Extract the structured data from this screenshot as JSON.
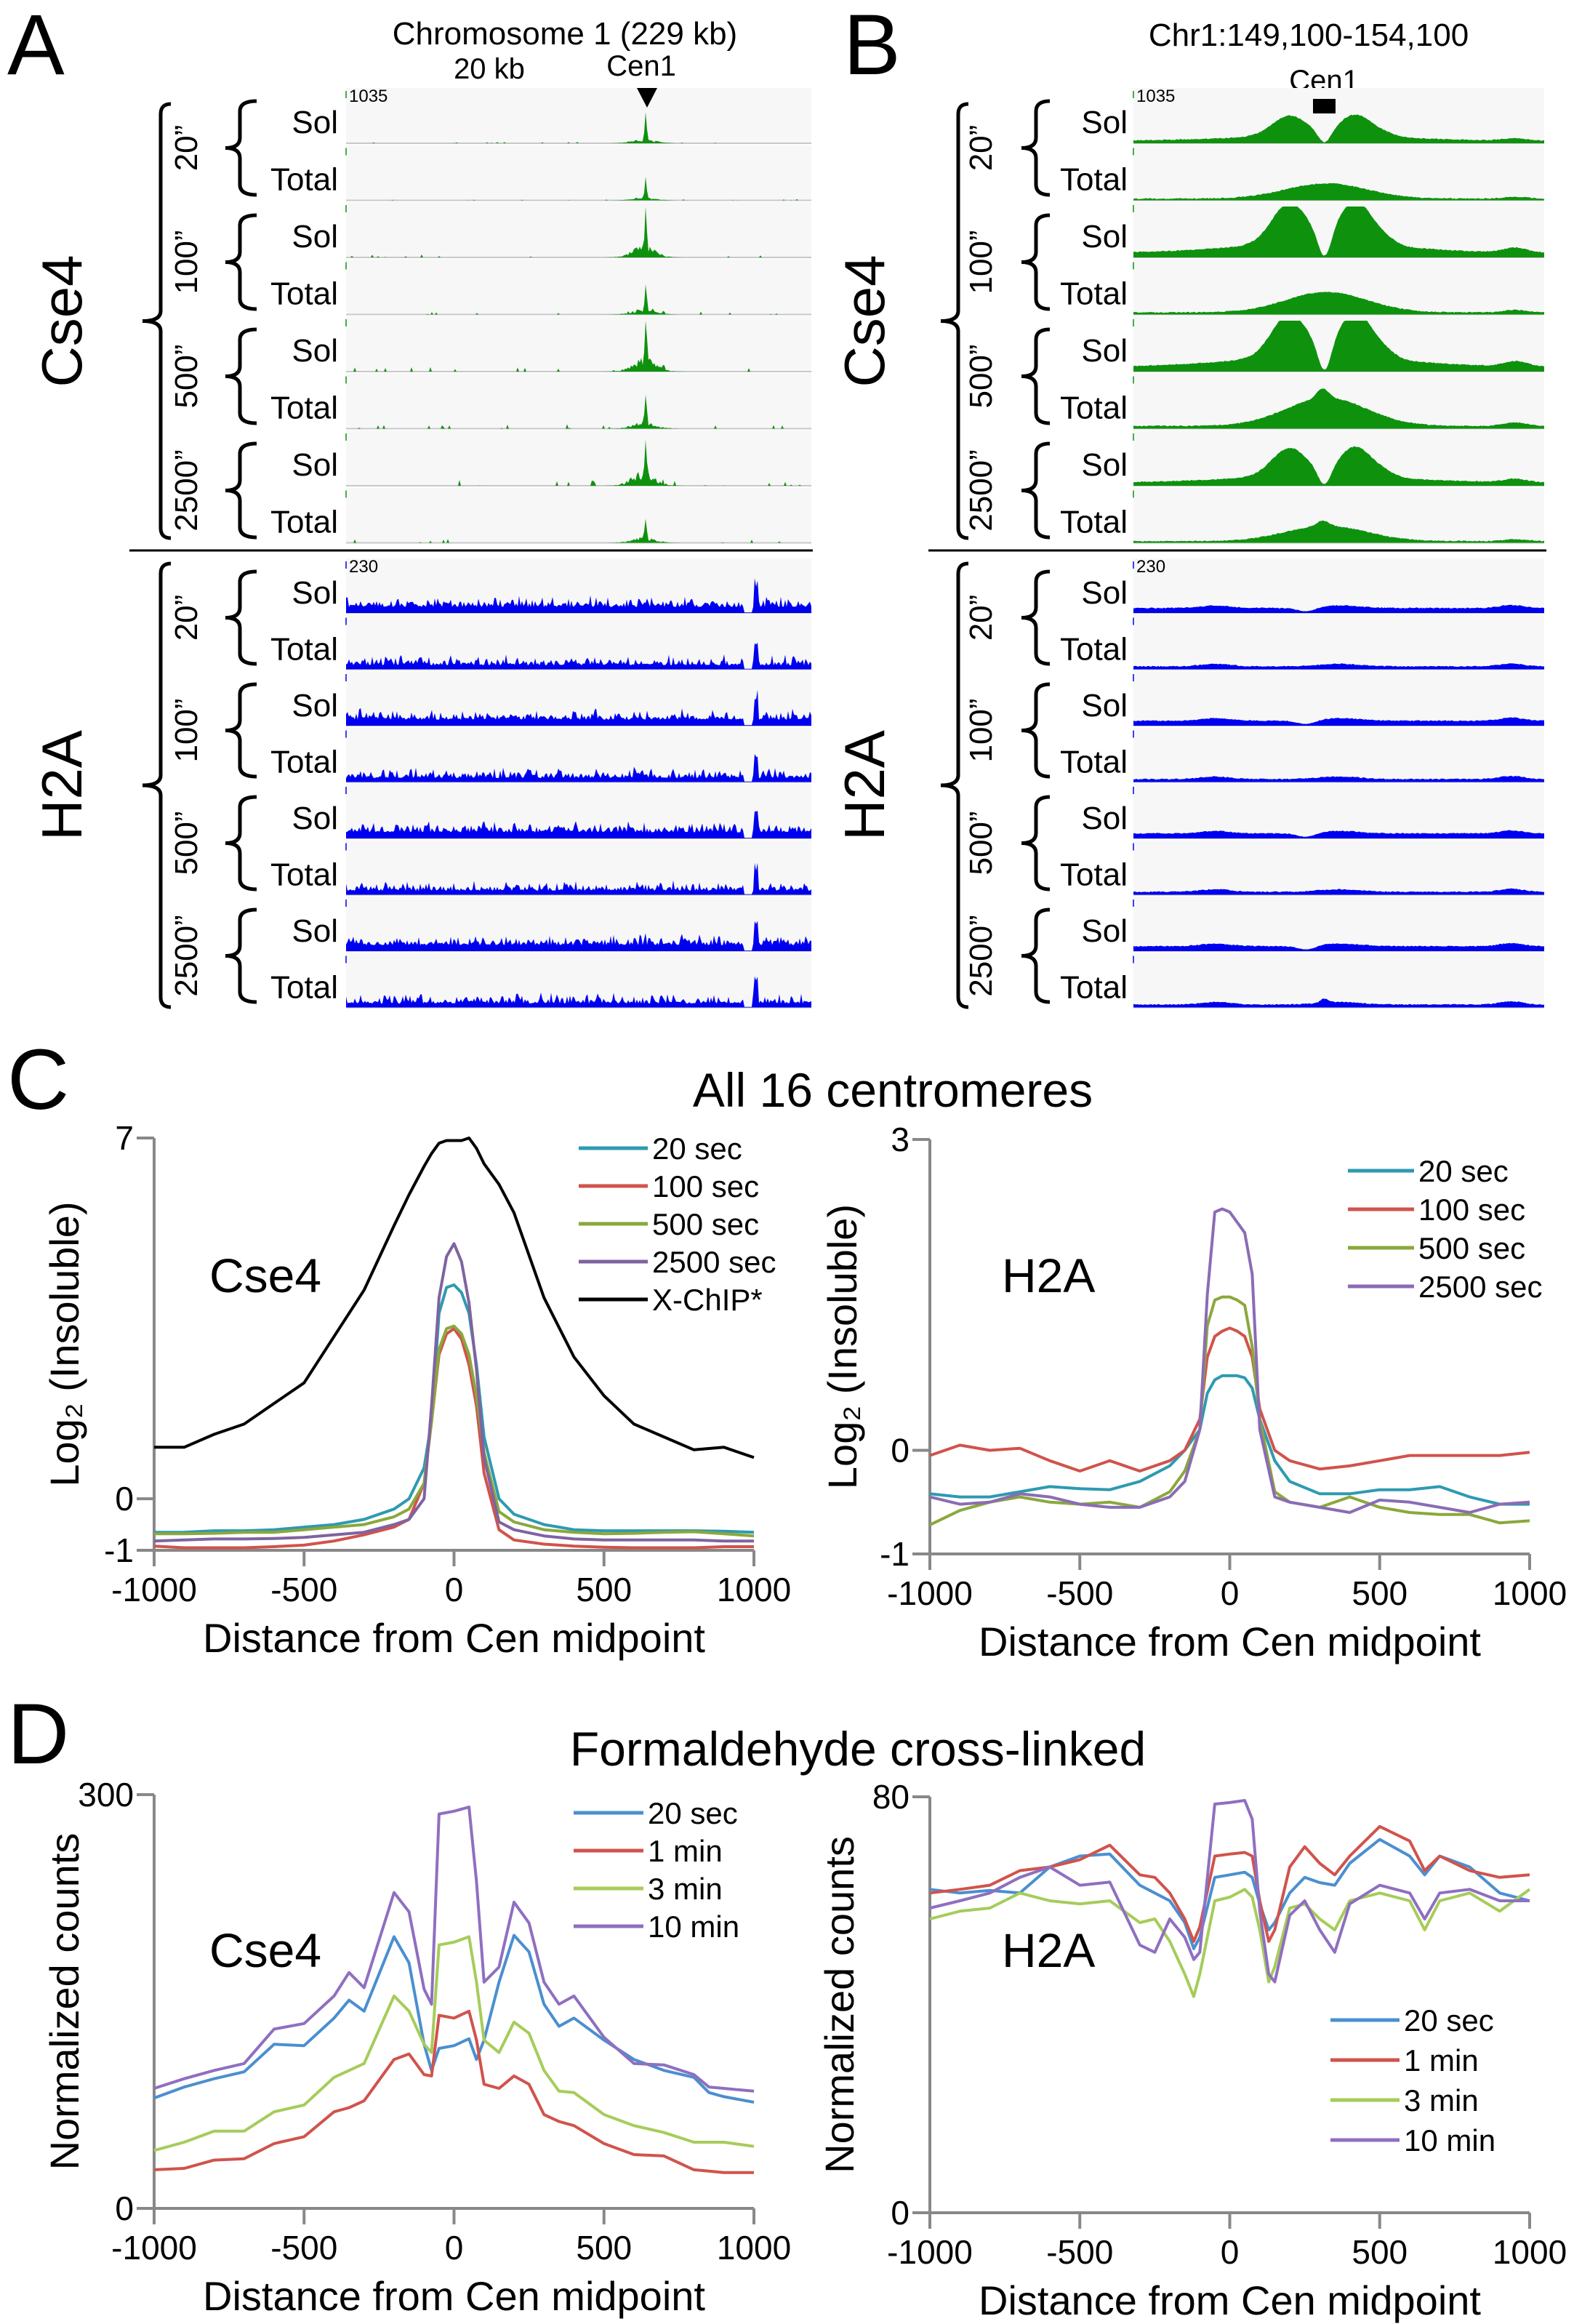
{
  "panels": {
    "A": {
      "letter": "A",
      "title": "Chromosome 1 (229 kb)",
      "scale_bar_label": "20 kb",
      "centromere_label": "Cen1",
      "cse4_scale": "1035",
      "h2a_scale": "230"
    },
    "B": {
      "letter": "B",
      "title": "Chr1:149,100-154,100",
      "centromere_label": "Cen1",
      "cse4_scale": "1035",
      "h2a_scale": "230"
    },
    "C": {
      "letter": "C",
      "title": "All 16 centromeres"
    },
    "D": {
      "letter": "D",
      "title": "Formaldehyde cross-linked"
    }
  },
  "tracks": {
    "groups": [
      {
        "label": "Cse4",
        "color": "#0e920e"
      },
      {
        "label": "H2A",
        "color": "#0000f0"
      }
    ],
    "times": [
      "20”",
      "100”",
      "500”",
      "2500”"
    ],
    "fractions": [
      "Sol",
      "Total"
    ]
  },
  "chart_data": [
    {
      "type": "line",
      "panel": "C",
      "label": "Cse4",
      "xlabel": "Distance from Cen midpoint",
      "ylabel": "Log₂ (Insoluble)",
      "xlim": [
        -1000,
        1000
      ],
      "ylim": [
        -1,
        7
      ],
      "xticks": [
        "-1000",
        "-500",
        "0",
        "500",
        "1000"
      ],
      "yticks": [
        "-1",
        "0",
        "7"
      ],
      "legend": "top-right",
      "grid": false,
      "x": [
        -1000,
        -900,
        -800,
        -700,
        -600,
        -500,
        -400,
        -300,
        -200,
        -150,
        -100,
        -75,
        -50,
        -25,
        0,
        25,
        50,
        75,
        100,
        150,
        200,
        300,
        400,
        500,
        600,
        700,
        800,
        900,
        1000
      ],
      "series": [
        {
          "name": "20 sec",
          "color": "#2e9ab0",
          "values": [
            -0.65,
            -0.65,
            -0.62,
            -0.62,
            -0.6,
            -0.55,
            -0.5,
            -0.4,
            -0.2,
            0.0,
            0.6,
            1.5,
            3.6,
            4.1,
            4.15,
            4.0,
            3.6,
            2.6,
            1.2,
            0.0,
            -0.3,
            -0.5,
            -0.6,
            -0.62,
            -0.62,
            -0.62,
            -0.62,
            -0.63,
            -0.65
          ]
        },
        {
          "name": "100 sec",
          "color": "#d0534c",
          "values": [
            -0.92,
            -0.95,
            -0.95,
            -0.95,
            -0.93,
            -0.9,
            -0.82,
            -0.7,
            -0.55,
            -0.4,
            0.3,
            1.5,
            2.8,
            3.2,
            3.3,
            3.1,
            2.6,
            1.8,
            0.5,
            -0.6,
            -0.8,
            -0.88,
            -0.92,
            -0.94,
            -0.95,
            -0.95,
            -0.95,
            -0.93,
            -0.93
          ]
        },
        {
          "name": "500 sec",
          "color": "#8aa83c",
          "values": [
            -0.68,
            -0.68,
            -0.67,
            -0.65,
            -0.65,
            -0.6,
            -0.55,
            -0.5,
            -0.35,
            -0.2,
            0.3,
            1.5,
            2.9,
            3.3,
            3.35,
            3.2,
            2.8,
            2.0,
            0.9,
            -0.25,
            -0.45,
            -0.6,
            -0.65,
            -0.68,
            -0.67,
            -0.65,
            -0.64,
            -0.68,
            -0.72
          ]
        },
        {
          "name": "2500 sec",
          "color": "#7f63a0",
          "values": [
            -0.82,
            -0.8,
            -0.78,
            -0.78,
            -0.77,
            -0.75,
            -0.7,
            -0.65,
            -0.5,
            -0.4,
            0.0,
            1.8,
            3.9,
            4.7,
            4.95,
            4.6,
            3.8,
            2.5,
            0.8,
            -0.45,
            -0.6,
            -0.72,
            -0.78,
            -0.8,
            -0.8,
            -0.8,
            -0.8,
            -0.82,
            -0.82
          ]
        },
        {
          "name": "X-ChIP*",
          "color": "#000000",
          "values": [
            1.0,
            1.0,
            1.25,
            1.45,
            1.85,
            2.25,
            3.15,
            4.05,
            5.3,
            5.9,
            6.45,
            6.7,
            6.9,
            6.95,
            6.95,
            6.95,
            7.0,
            6.8,
            6.5,
            6.1,
            5.55,
            3.9,
            2.75,
            2.0,
            1.45,
            1.2,
            0.95,
            1.0,
            0.8
          ]
        }
      ]
    },
    {
      "type": "line",
      "panel": "C",
      "label": "H2A",
      "xlabel": "Distance from Cen midpoint",
      "ylabel": "Log₂ (Insoluble)",
      "xlim": [
        -1000,
        1000
      ],
      "ylim": [
        -1,
        3
      ],
      "xticks": [
        "-1000",
        "-500",
        "0",
        "500",
        "1000"
      ],
      "yticks": [
        "-1",
        "0",
        "3"
      ],
      "legend": "top-right",
      "grid": false,
      "x": [
        -1000,
        -900,
        -800,
        -700,
        -600,
        -500,
        -400,
        -300,
        -200,
        -150,
        -100,
        -75,
        -50,
        -25,
        0,
        25,
        50,
        75,
        100,
        150,
        200,
        300,
        400,
        500,
        600,
        700,
        800,
        900,
        1000
      ],
      "series": [
        {
          "name": "20 sec",
          "color": "#2e9ab0",
          "values": [
            -0.42,
            -0.45,
            -0.45,
            -0.4,
            -0.35,
            -0.37,
            -0.38,
            -0.3,
            -0.15,
            0.0,
            0.2,
            0.55,
            0.68,
            0.72,
            0.72,
            0.72,
            0.7,
            0.6,
            0.3,
            -0.1,
            -0.3,
            -0.42,
            -0.42,
            -0.38,
            -0.38,
            -0.35,
            -0.45,
            -0.52,
            -0.52
          ]
        },
        {
          "name": "100 sec",
          "color": "#d0534c",
          "values": [
            -0.05,
            0.05,
            0.0,
            0.02,
            -0.1,
            -0.2,
            -0.1,
            -0.2,
            -0.1,
            0.0,
            0.3,
            0.9,
            1.1,
            1.15,
            1.18,
            1.15,
            1.1,
            0.9,
            0.4,
            0.0,
            -0.1,
            -0.18,
            -0.15,
            -0.1,
            -0.05,
            -0.05,
            -0.05,
            -0.05,
            -0.02
          ]
        },
        {
          "name": "500 sec",
          "color": "#8aa83c",
          "values": [
            -0.72,
            -0.58,
            -0.5,
            -0.45,
            -0.5,
            -0.52,
            -0.5,
            -0.55,
            -0.4,
            -0.2,
            0.2,
            1.2,
            1.45,
            1.48,
            1.48,
            1.45,
            1.4,
            1.0,
            0.3,
            -0.4,
            -0.5,
            -0.55,
            -0.45,
            -0.55,
            -0.6,
            -0.62,
            -0.62,
            -0.7,
            -0.68
          ]
        },
        {
          "name": "2500 sec",
          "color": "#8a6cb4",
          "values": [
            -0.45,
            -0.52,
            -0.5,
            -0.42,
            -0.45,
            -0.52,
            -0.55,
            -0.55,
            -0.45,
            -0.3,
            0.2,
            1.5,
            2.3,
            2.33,
            2.3,
            2.2,
            2.1,
            1.7,
            0.2,
            -0.45,
            -0.5,
            -0.55,
            -0.6,
            -0.48,
            -0.5,
            -0.55,
            -0.6,
            -0.52,
            -0.5
          ]
        }
      ]
    },
    {
      "type": "line",
      "panel": "D",
      "label": "Cse4",
      "xlabel": "Distance from Cen midpoint",
      "ylabel": "Normalized counts",
      "xlim": [
        -1000,
        1000
      ],
      "ylim": [
        0,
        300
      ],
      "xticks": [
        "-1000",
        "-500",
        "0",
        "500",
        "1000"
      ],
      "yticks": [
        "0",
        "300"
      ],
      "legend": "top-right",
      "grid": false,
      "x": [
        -1000,
        -900,
        -800,
        -700,
        -600,
        -500,
        -400,
        -350,
        -300,
        -200,
        -150,
        -100,
        -75,
        -50,
        0,
        50,
        75,
        100,
        150,
        200,
        250,
        300,
        350,
        400,
        500,
        600,
        700,
        800,
        850,
        900,
        1000
      ],
      "series": [
        {
          "name": "20 sec",
          "color": "#4a8fd0",
          "values": [
            80,
            88,
            94,
            99,
            119,
            118,
            138,
            151,
            143,
            197,
            178,
            119,
            100,
            116,
            118,
            123,
            108,
            122,
            164,
            198,
            186,
            148,
            132,
            138,
            122,
            108,
            100,
            95,
            84,
            81,
            77
          ]
        },
        {
          "name": "1 min",
          "color": "#d0534c",
          "values": [
            28,
            29,
            35,
            36,
            47,
            52,
            70,
            73,
            78,
            108,
            112,
            97,
            96,
            140,
            138,
            143,
            122,
            90,
            87,
            96,
            90,
            68,
            63,
            60,
            47,
            39,
            38,
            28,
            27,
            26,
            26
          ]
        },
        {
          "name": "3 min",
          "color": "#a6cc5a",
          "values": [
            42,
            48,
            56,
            56,
            70,
            75,
            95,
            100,
            105,
            154,
            143,
            119,
            113,
            191,
            193,
            197,
            164,
            122,
            113,
            135,
            127,
            100,
            85,
            84,
            68,
            60,
            55,
            48,
            48,
            48,
            45
          ]
        },
        {
          "name": "10 min",
          "color": "#8f6fc0",
          "values": [
            87,
            94,
            100,
            105,
            130,
            134,
            154,
            171,
            160,
            229,
            215,
            159,
            148,
            286,
            288,
            291,
            237,
            164,
            175,
            222,
            207,
            164,
            148,
            154,
            124,
            105,
            104,
            97,
            88,
            87,
            85
          ]
        }
      ]
    },
    {
      "type": "line",
      "panel": "D",
      "label": "H2A",
      "xlabel": "Distance from Cen midpoint",
      "ylabel": "Normalized counts",
      "xlim": [
        -1000,
        1000
      ],
      "ylim": [
        0,
        80
      ],
      "xticks": [
        "-1000",
        "-500",
        "0",
        "500",
        "1000"
      ],
      "yticks": [
        "0",
        "80"
      ],
      "legend": "bottom-right",
      "grid": false,
      "x": [
        -1000,
        -900,
        -800,
        -700,
        -600,
        -500,
        -400,
        -300,
        -250,
        -200,
        -150,
        -120,
        -100,
        -50,
        0,
        50,
        75,
        100,
        130,
        150,
        200,
        250,
        300,
        350,
        400,
        500,
        600,
        650,
        700,
        800,
        900,
        1000
      ],
      "series": [
        {
          "name": "20 sec",
          "color": "#4a8fd0",
          "values": [
            62.2,
            61.5,
            62,
            61.5,
            66.5,
            68.6,
            69,
            63,
            61.5,
            60,
            55.8,
            50.8,
            53,
            64.5,
            65,
            65.5,
            64.5,
            59.4,
            54.4,
            55.8,
            61.5,
            64.5,
            63.5,
            63,
            67.2,
            71.8,
            68.6,
            65,
            68.6,
            66.5,
            61.5,
            60
          ]
        },
        {
          "name": "1 min",
          "color": "#d0534c",
          "values": [
            61.5,
            62.2,
            63,
            65.8,
            66.5,
            67.9,
            70.7,
            65,
            64.5,
            61.5,
            56.5,
            52.2,
            55,
            68.6,
            69,
            69.3,
            68.6,
            60,
            52.2,
            54.4,
            66.5,
            70.4,
            67.2,
            65,
            68.6,
            74.3,
            71.5,
            65.8,
            68.6,
            65.8,
            64.5,
            65
          ]
        },
        {
          "name": "3 min",
          "color": "#a6cc5a",
          "values": [
            56.5,
            58,
            58.6,
            61.5,
            60,
            59.4,
            60,
            55.8,
            56.5,
            52.2,
            45.9,
            41.6,
            45.9,
            60,
            60.7,
            62.2,
            60.7,
            54.4,
            44.4,
            47.3,
            58.6,
            59.4,
            56.5,
            54.4,
            60,
            61.5,
            60,
            54.4,
            60,
            61.5,
            58,
            62.2
          ]
        },
        {
          "name": "10 min",
          "color": "#8f6fc0",
          "values": [
            58.6,
            60,
            61.5,
            64.5,
            66.5,
            63,
            63.6,
            51.5,
            50.1,
            56.5,
            53,
            48.7,
            50.1,
            78.6,
            78.9,
            79.3,
            75.7,
            58,
            45.9,
            44.4,
            57.2,
            60,
            54.4,
            50.1,
            59.4,
            63,
            61.5,
            56.5,
            61.5,
            62.2,
            60,
            60
          ]
        }
      ]
    }
  ]
}
